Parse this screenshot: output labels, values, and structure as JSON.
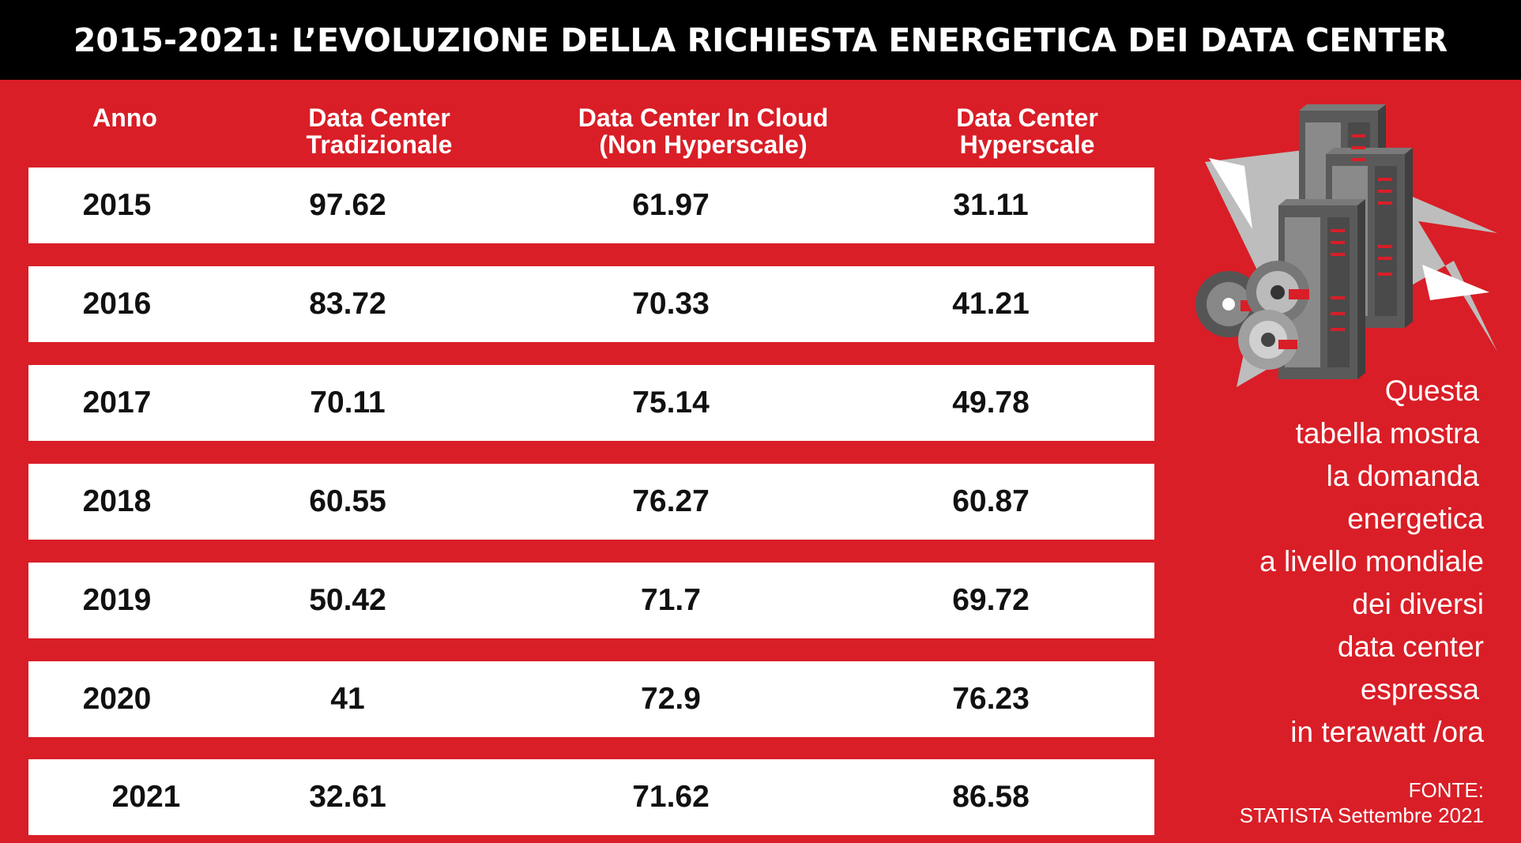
{
  "title": "2015-2021: L’EVOLUZIONE DELLA RICHIESTA ENERGETICA DEI DATA CENTER",
  "chart_data": {
    "type": "table",
    "columns": [
      [
        "Anno"
      ],
      [
        "Data Center",
        "Tradizionale"
      ],
      [
        "Data Center In Cloud",
        "(Non Hyperscale)"
      ],
      [
        "Data Center",
        "Hyperscale"
      ]
    ],
    "rows": [
      [
        "2015",
        "97.62",
        "61.97",
        "31.11"
      ],
      [
        "2016",
        "83.72",
        "70.33",
        "41.21"
      ],
      [
        "2017",
        "70.11",
        "75.14",
        "49.78"
      ],
      [
        "2018",
        "60.55",
        "76.27",
        "60.87"
      ],
      [
        "2019",
        "50.42",
        "71.7",
        "69.72"
      ],
      [
        "2020",
        "41",
        "72.9",
        "76.23"
      ],
      [
        "2021",
        "32.61",
        "71.62",
        "86.58"
      ]
    ]
  },
  "description_lines": [
    "Questa",
    "tabella mostra",
    "la domanda",
    "energetica",
    "a livello mondiale",
    "dei diversi",
    "data center",
    "espressa",
    "in terawatt /ora"
  ],
  "source_lines": [
    "FONTE:",
    "STATISTA Settembre 2021"
  ],
  "colors": {
    "background": "#d91e27",
    "header": "#000000",
    "row": "#ffffff",
    "text_dark": "#111111",
    "server_dark": "#555555",
    "server_light": "#9a9a9a",
    "triangle": "#bdbdbd"
  },
  "icons": [
    "servers-illustration-icon",
    "disks-icon",
    "triangle-shapes"
  ]
}
